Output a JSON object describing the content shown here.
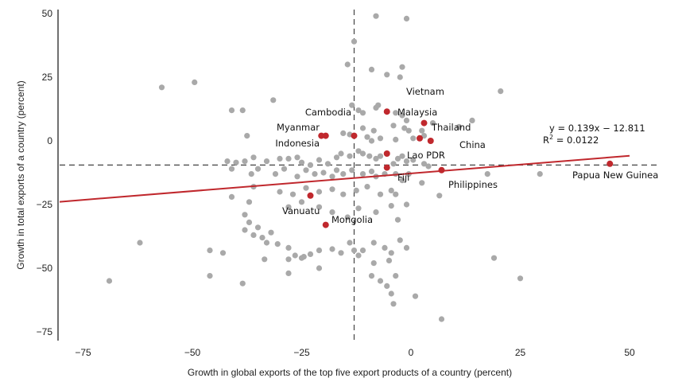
{
  "chart_data": {
    "type": "scatter",
    "xlabel": "Growth in global exports of the top five export products of a country (percent)",
    "ylabel": "Growth in total exports of a country (percent)",
    "xlim": [
      -80,
      52
    ],
    "ylim": [
      -78,
      52
    ],
    "xticks": [
      "−75",
      "−50",
      "−25",
      "0",
      "25",
      "50"
    ],
    "xtick_values": [
      -75,
      -50,
      -25,
      0,
      25,
      50
    ],
    "yticks": [
      "50",
      "25",
      "0",
      "−25",
      "−50",
      "−75"
    ],
    "ytick_values": [
      50,
      25,
      0,
      -25,
      -50,
      -75
    ],
    "mean_lines": {
      "x": -13,
      "y": -9.5
    },
    "trendline": {
      "slope": 0.139,
      "intercept": -12.811,
      "color": "#c0282d"
    },
    "equation": {
      "line1": "y = 0.139x − 12.811",
      "line2_prefix": "R",
      "line2_sup": "2",
      "line2_rest": " = 0.0122"
    },
    "colors": {
      "other": "#a9a9a9",
      "highlight": "#c0282d",
      "axis": "#222222"
    },
    "highlighted": [
      {
        "label": "Vietnam",
        "x": 3,
        "y": 7
      },
      {
        "label": "Malaysia",
        "x": -5.5,
        "y": 11.5
      },
      {
        "label": "Cambodia",
        "x": -13,
        "y": 2
      },
      {
        "label": "Thailand",
        "x": 4.5,
        "y": 0
      },
      {
        "label": "Myanmar",
        "x": -20.5,
        "y": 2
      },
      {
        "label": "Indonesia",
        "x": -19.5,
        "y": 2
      },
      {
        "label": "China",
        "x": 2,
        "y": 1
      },
      {
        "label": "Lao PDR",
        "x": -5.5,
        "y": -5
      },
      {
        "label": "Fiji",
        "x": -5.5,
        "y": -10.5
      },
      {
        "label": "Philippines",
        "x": 7,
        "y": -11.5
      },
      {
        "label": "Papua New Guinea",
        "x": 45.5,
        "y": -9
      },
      {
        "label": "Vanuatu",
        "x": -23,
        "y": -21.5
      },
      {
        "label": "Mongolia",
        "x": -19.5,
        "y": -33
      }
    ],
    "other_points": [
      [
        -8,
        49
      ],
      [
        -1,
        48
      ],
      [
        -13,
        39
      ],
      [
        -14.5,
        30
      ],
      [
        -9,
        28
      ],
      [
        -2,
        29
      ],
      [
        -5.5,
        26
      ],
      [
        -2.5,
        25
      ],
      [
        -57,
        21
      ],
      [
        -49.5,
        23
      ],
      [
        20.5,
        19.5
      ],
      [
        -41,
        12
      ],
      [
        -38.5,
        12
      ],
      [
        -31.5,
        16
      ],
      [
        -13.5,
        14
      ],
      [
        -12,
        12
      ],
      [
        -11,
        11
      ],
      [
        -8,
        13
      ],
      [
        -7.5,
        14
      ],
      [
        -3.5,
        11
      ],
      [
        -2,
        10
      ],
      [
        -1,
        8
      ],
      [
        5,
        7
      ],
      [
        11,
        5.5
      ],
      [
        14,
        8
      ],
      [
        -8.5,
        4
      ],
      [
        -11,
        5
      ],
      [
        -4,
        6
      ],
      [
        -1.5,
        5
      ],
      [
        -0.5,
        4
      ],
      [
        2.5,
        4
      ],
      [
        -15.5,
        3
      ],
      [
        -14,
        2.5
      ],
      [
        -10,
        1.5
      ],
      [
        -9,
        0
      ],
      [
        -7,
        1
      ],
      [
        -3.5,
        0.5
      ],
      [
        0.5,
        1
      ],
      [
        3,
        2
      ],
      [
        -37.5,
        2
      ],
      [
        -42,
        -8
      ],
      [
        -40,
        -8.5
      ],
      [
        -38,
        -8
      ],
      [
        -36,
        -6.5
      ],
      [
        -33,
        -8
      ],
      [
        -30,
        -7
      ],
      [
        -28,
        -7
      ],
      [
        -26,
        -6.5
      ],
      [
        -25,
        -8.5
      ],
      [
        -23,
        -9.5
      ],
      [
        -21,
        -7.5
      ],
      [
        -19,
        -9
      ],
      [
        -17,
        -6.5
      ],
      [
        -16,
        -5
      ],
      [
        -14,
        -6
      ],
      [
        -12,
        -4
      ],
      [
        -11,
        -5
      ],
      [
        -9.5,
        -6
      ],
      [
        -8,
        -7
      ],
      [
        -7,
        -6
      ],
      [
        -4,
        -9
      ],
      [
        -3,
        -7
      ],
      [
        -2,
        -6
      ],
      [
        -1,
        -8
      ],
      [
        0.5,
        -7.5
      ],
      [
        3,
        -9
      ],
      [
        4,
        -10
      ],
      [
        -41,
        -11
      ],
      [
        -36.5,
        -13
      ],
      [
        -35,
        -11
      ],
      [
        -31,
        -13
      ],
      [
        -29,
        -11
      ],
      [
        -26,
        -14
      ],
      [
        -24,
        -11.5
      ],
      [
        -22,
        -13
      ],
      [
        -20,
        -12.5
      ],
      [
        -18,
        -14
      ],
      [
        -17,
        -11.5
      ],
      [
        -15.5,
        -13
      ],
      [
        -13.5,
        -11.5
      ],
      [
        -11,
        -13
      ],
      [
        -9,
        -12
      ],
      [
        -8,
        -14
      ],
      [
        -6,
        -13
      ],
      [
        -3.5,
        -13
      ],
      [
        -2,
        -15.5
      ],
      [
        -0.5,
        -13
      ],
      [
        2.5,
        -16.5
      ],
      [
        17.5,
        -13
      ],
      [
        29.5,
        -13
      ],
      [
        -36,
        -18
      ],
      [
        -30,
        -20
      ],
      [
        -27,
        -21
      ],
      [
        -24,
        -18.5
      ],
      [
        -21,
        -20
      ],
      [
        -18,
        -19
      ],
      [
        -15.5,
        -21
      ],
      [
        -12.5,
        -19.5
      ],
      [
        -10,
        -18
      ],
      [
        -7,
        -21
      ],
      [
        -4.5,
        -19.5
      ],
      [
        -3.5,
        -21
      ],
      [
        -1,
        -25
      ],
      [
        6.5,
        -21.5
      ],
      [
        -41,
        -22
      ],
      [
        -37,
        -24
      ],
      [
        -38,
        -29
      ],
      [
        -37,
        -32
      ],
      [
        -35,
        -34
      ],
      [
        -32,
        -36
      ],
      [
        -28,
        -26
      ],
      [
        -25,
        -24
      ],
      [
        -21,
        -26
      ],
      [
        -18,
        -28
      ],
      [
        -14.5,
        -30
      ],
      [
        -12,
        -26.5
      ],
      [
        -8,
        -28
      ],
      [
        -4.5,
        -25.5
      ],
      [
        -3,
        -31
      ],
      [
        -36,
        -37
      ],
      [
        -38,
        -35
      ],
      [
        -34,
        -38
      ],
      [
        -33,
        -40
      ],
      [
        -30.5,
        -40.5
      ],
      [
        -28,
        -42
      ],
      [
        -26.5,
        -45
      ],
      [
        -25,
        -46
      ],
      [
        -23,
        -44.5
      ],
      [
        -21,
        -43
      ],
      [
        -18,
        -42.5
      ],
      [
        -14,
        -40
      ],
      [
        -11,
        -43
      ],
      [
        -8.5,
        -40
      ],
      [
        -6,
        -42
      ],
      [
        -4.5,
        -44
      ],
      [
        -2.5,
        -39
      ],
      [
        -1,
        -42
      ],
      [
        -33.5,
        -46.5
      ],
      [
        -28,
        -46.5
      ],
      [
        -24.5,
        -45.5
      ],
      [
        -21,
        -50
      ],
      [
        -16,
        -44
      ],
      [
        -13,
        -43
      ],
      [
        -12,
        -45
      ],
      [
        -8.5,
        -48
      ],
      [
        -5,
        -47
      ],
      [
        -3.5,
        -53
      ],
      [
        -43,
        -44
      ],
      [
        -46,
        -43
      ],
      [
        -62,
        -40
      ],
      [
        -46,
        -53
      ],
      [
        -38.5,
        -56
      ],
      [
        -69,
        -55
      ],
      [
        -28,
        -52
      ],
      [
        -9,
        -53
      ],
      [
        -7,
        -55
      ],
      [
        -5.5,
        -57
      ],
      [
        -4.5,
        -60
      ],
      [
        -4,
        -64
      ],
      [
        1,
        -61
      ],
      [
        7,
        -70
      ],
      [
        19,
        -46
      ],
      [
        25,
        -54
      ]
    ]
  }
}
